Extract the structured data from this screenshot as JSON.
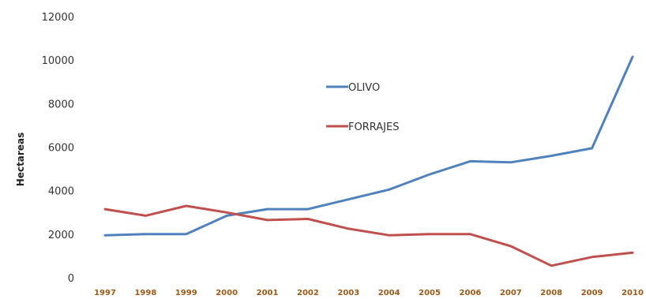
{
  "chart_data": {
    "type": "line",
    "title": "",
    "xlabel": "",
    "ylabel": "Hectareas",
    "ylim": [
      0,
      12000
    ],
    "yticks": [
      0,
      2000,
      4000,
      6000,
      8000,
      10000,
      12000
    ],
    "grid": false,
    "legend_position": "center",
    "categories": [
      "1997",
      "1998",
      "1999",
      "2000",
      "2001",
      "2002",
      "2003",
      "2004",
      "2005",
      "2006",
      "2007",
      "2008",
      "2009",
      "2010"
    ],
    "series": [
      {
        "name": "OLIVO",
        "color": "#4f81bd",
        "values": [
          1950,
          2000,
          2000,
          2850,
          3150,
          3150,
          3600,
          4050,
          4750,
          5350,
          5300,
          5600,
          5950,
          10150
        ]
      },
      {
        "name": "FORRAJES",
        "color": "#c0504d",
        "values": [
          3150,
          2850,
          3300,
          3000,
          2650,
          2700,
          2250,
          1950,
          2000,
          2000,
          1450,
          550,
          950,
          1150
        ]
      }
    ]
  }
}
